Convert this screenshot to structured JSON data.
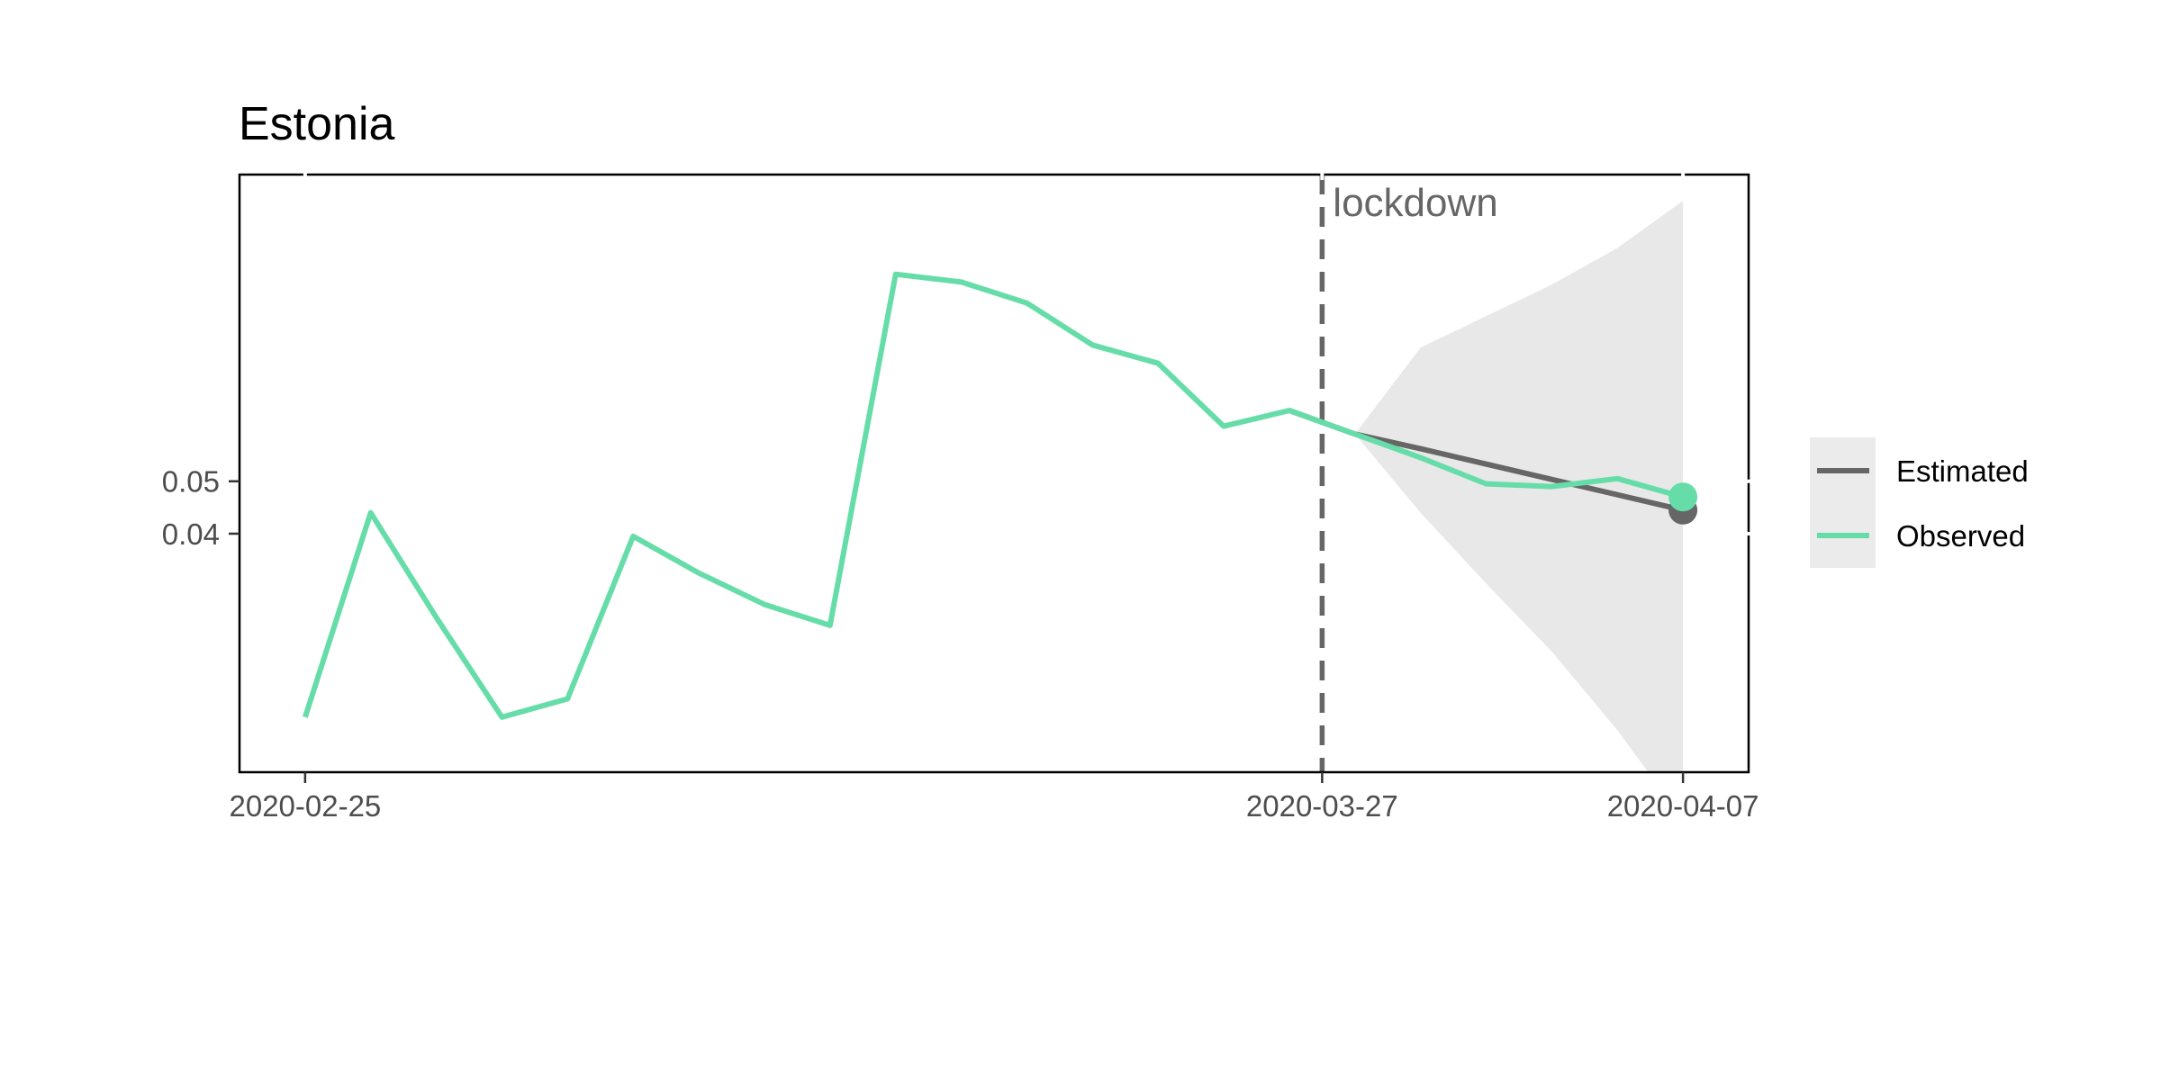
{
  "chart_data": {
    "type": "line",
    "title": "Estonia",
    "xlabel": "",
    "ylabel": "",
    "x_ticks": [
      "2020-02-25",
      "2020-03-27",
      "2020-04-07"
    ],
    "y_ticks": [
      0.05,
      0.04
    ],
    "y_tick_labels": [
      "0.05",
      "0.04"
    ],
    "grid": false,
    "legend_position": "right",
    "annotation": {
      "label": "lockdown",
      "x": "2020-03-27"
    },
    "series": [
      {
        "name": "Observed",
        "color": "#66dda9",
        "x": [
          "2020-02-25",
          "2020-02-27",
          "2020-02-29",
          "2020-03-02",
          "2020-03-04",
          "2020-03-06",
          "2020-03-08",
          "2020-03-10",
          "2020-03-12",
          "2020-03-14",
          "2020-03-16",
          "2020-03-18",
          "2020-03-20",
          "2020-03-22",
          "2020-03-24",
          "2020-03-26",
          "2020-03-28",
          "2020-03-30",
          "2020-04-01",
          "2020-04-03",
          "2020-04-05",
          "2020-04-07"
        ],
        "values": [
          0.005,
          0.044,
          0.024,
          0.005,
          0.0085,
          0.0395,
          0.0325,
          0.0265,
          0.0225,
          0.0895,
          0.088,
          0.084,
          0.076,
          0.0725,
          0.0605,
          0.0635,
          0.059,
          0.0545,
          0.0495,
          0.049,
          0.0505,
          0.047
        ]
      },
      {
        "name": "Estimated",
        "color": "#666666",
        "x": [
          "2020-03-26",
          "2020-03-28",
          "2020-03-30",
          "2020-04-07"
        ],
        "values": [
          0.0635,
          0.059,
          0.0562,
          0.0445
        ]
      }
    ],
    "interval": {
      "color": "#e8e8e8",
      "x": [
        "2020-03-28",
        "2020-03-30",
        "2020-04-01",
        "2020-04-03",
        "2020-04-05",
        "2020-04-07"
      ],
      "upper": [
        0.059,
        0.0755,
        0.0815,
        0.0875,
        0.0945,
        0.1035
      ],
      "lower": [
        0.059,
        0.044,
        0.0305,
        0.0175,
        0.0025,
        -0.0145
      ]
    },
    "xlim": [
      "2020-02-23",
      "2020-04-09"
    ],
    "ylim": [
      -0.0055,
      0.1085
    ]
  }
}
